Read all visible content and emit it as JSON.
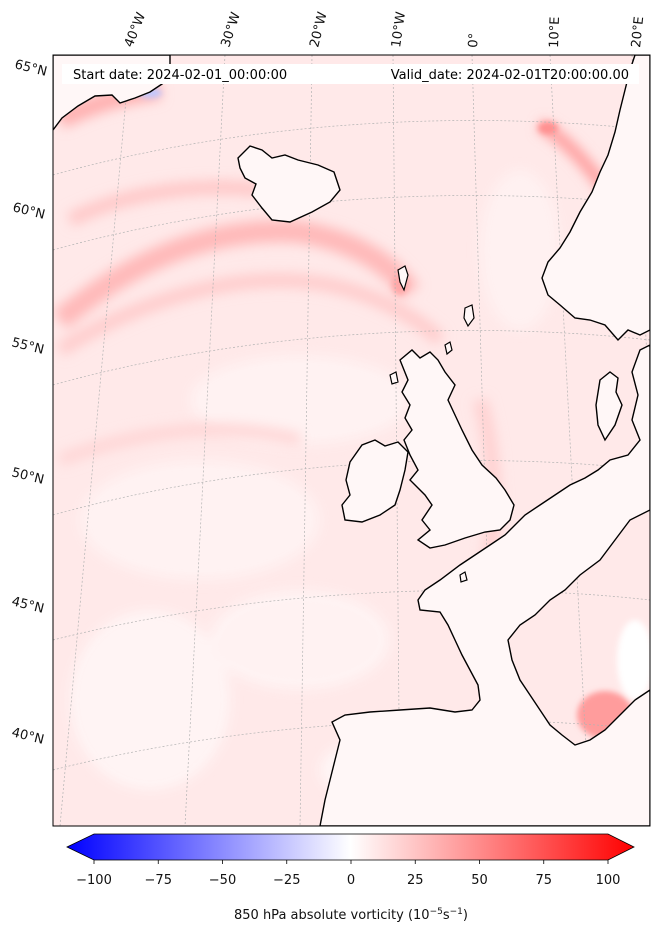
{
  "header": {
    "start_date": "Start date: 2024-02-01_00:00:00",
    "valid_date": "Valid_date: 2024-02-01T20:00:00.00"
  },
  "lon_labels": [
    "40°W",
    "30°W",
    "20°W",
    "10°W",
    "0°",
    "10°E",
    "20°E"
  ],
  "lat_labels": [
    "65°N",
    "60°N",
    "55°N",
    "50°N",
    "45°N",
    "40°N"
  ],
  "colorbar": {
    "min": -100,
    "max": 100,
    "ticks": [
      "−100",
      "−75",
      "−50",
      "−25",
      "0",
      "25",
      "50",
      "75",
      "100"
    ],
    "label_main": "850 hPa absolute vorticity (10",
    "label_exp1": "−5",
    "label_mid": "s",
    "label_exp2": "−1",
    "label_end": ")",
    "colors": {
      "negative": "#0000ff",
      "zero": "#ffffff",
      "positive": "#ff0000"
    }
  },
  "map_colors": {
    "background": "#ffeaea",
    "coastline": "#000000",
    "gridline": "#b0b0b0"
  }
}
